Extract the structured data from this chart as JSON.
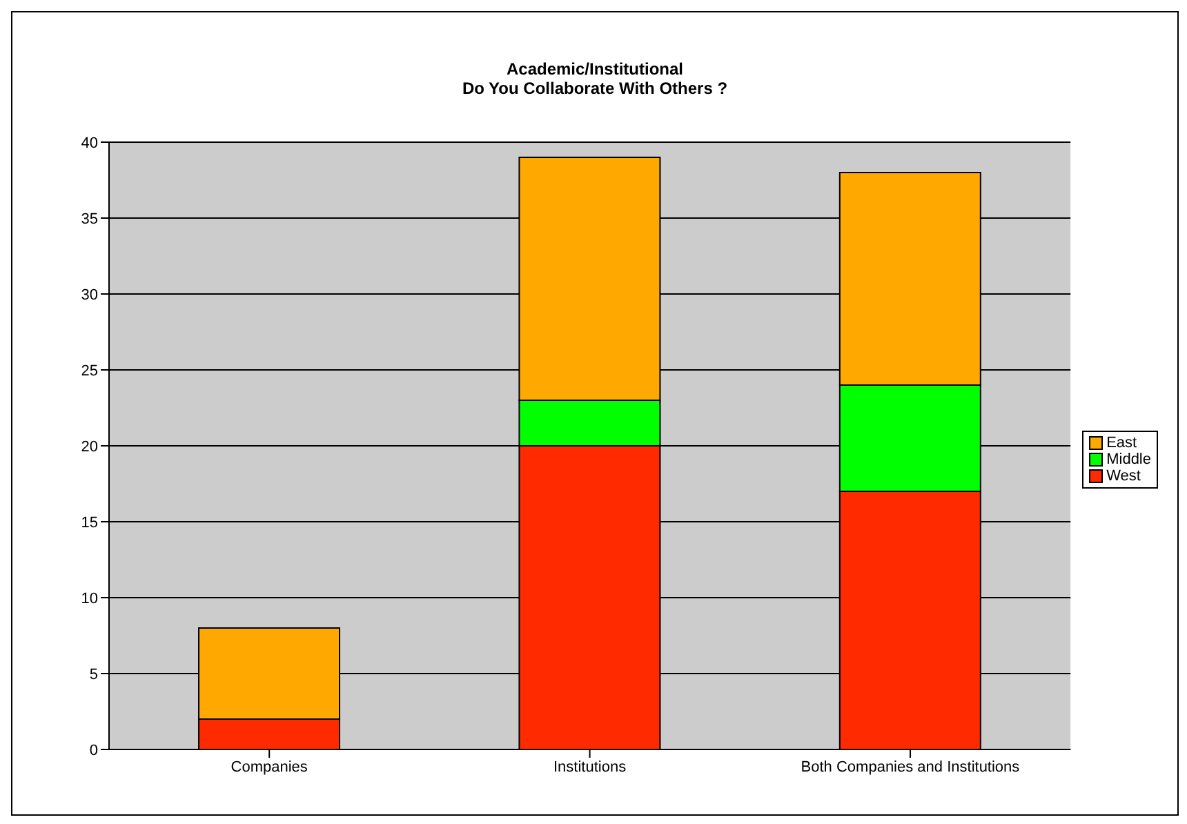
{
  "chart_data": {
    "type": "bar",
    "title": "Academic/Institutional\nDo You Collaborate With Others ?",
    "categories": [
      "Companies",
      "Institutions",
      "Both Companies and Institutions"
    ],
    "stacked": true,
    "series": [
      {
        "name": "West",
        "color": "#ff2a00",
        "values": [
          2,
          20,
          17
        ]
      },
      {
        "name": "Middle",
        "color": "#00ff00",
        "values": [
          0,
          3,
          7
        ]
      },
      {
        "name": "East",
        "color": "#ffa800",
        "values": [
          6,
          16,
          14
        ]
      }
    ],
    "ylim": [
      0,
      40
    ],
    "yticks": [
      0,
      5,
      10,
      15,
      20,
      25,
      30,
      35,
      40
    ],
    "grid": "y",
    "legend": "right"
  }
}
